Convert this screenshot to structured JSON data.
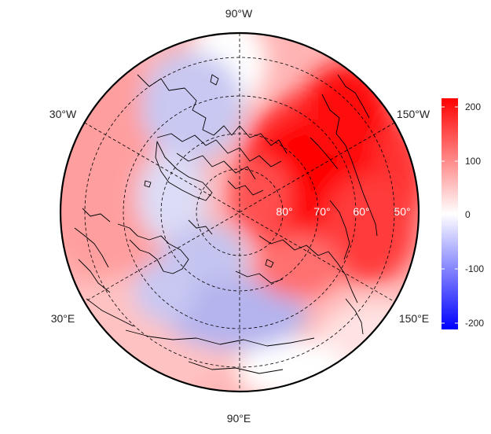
{
  "map": {
    "projection": "north polar stereographic",
    "longitude_labels": {
      "top": "90°W",
      "upper_left": "30°W",
      "upper_right": "150°W",
      "lower_left": "30°E",
      "lower_right": "150°E",
      "bottom": "90°E"
    },
    "latitude_labels": [
      "80°",
      "70°",
      "60°",
      "50°"
    ],
    "colorbar": {
      "ticks": [
        "200",
        "100",
        "0",
        "-100",
        "-200"
      ],
      "range": [
        -220,
        220
      ],
      "colors": {
        "low": "#0000ff",
        "mid": "#ffffff",
        "high": "#ff0000"
      }
    },
    "colors": {
      "grid": "#000000",
      "coastline": "#000000",
      "outline": "#000000"
    }
  }
}
